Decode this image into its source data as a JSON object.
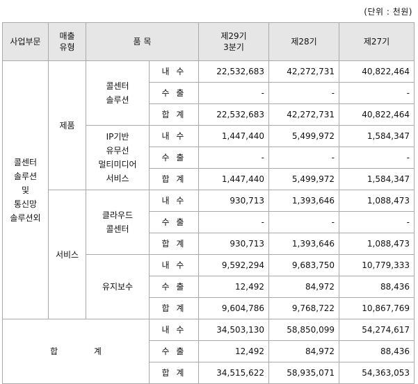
{
  "unit": "(단위 : 천원)",
  "headers": {
    "division": "사업부문",
    "sales_type": [
      "매출",
      "유형"
    ],
    "product": "품 목",
    "p29": [
      "제29기",
      "3분기"
    ],
    "p28": "제28기",
    "p27": "제27기"
  },
  "division_name": [
    "콜센터",
    "솔루션",
    "및",
    "통신망",
    "솔루션외"
  ],
  "type_product": "제품",
  "type_service": "서비스",
  "items": {
    "callcenter": [
      "콜센터",
      "솔루션"
    ],
    "ip": [
      "IP기반",
      "유무선",
      "멀티미디어",
      "서비스"
    ],
    "cloud": [
      "클라우드",
      "콜센터"
    ],
    "maint": "유지보수"
  },
  "labels": {
    "domestic": "내 수",
    "export": "수 출",
    "sum": "합 계"
  },
  "total_label": [
    "합",
    "계"
  ],
  "rows": {
    "cc_dom": [
      "22,532,683",
      "42,272,731",
      "40,822,464"
    ],
    "cc_exp": [
      "-",
      "-",
      "-"
    ],
    "cc_sum": [
      "22,532,683",
      "42,272,731",
      "40,822,464"
    ],
    "ip_dom": [
      "1,447,440",
      "5,499,972",
      "1,584,347"
    ],
    "ip_exp": [
      "-",
      "-",
      "-"
    ],
    "ip_sum": [
      "1,447,440",
      "5,499,972",
      "1,584,347"
    ],
    "cl_dom": [
      "930,713",
      "1,393,646",
      "1,088,473"
    ],
    "cl_exp": [
      "-",
      "-",
      "-"
    ],
    "cl_sum": [
      "930,713",
      "1,393,646",
      "1,088,473"
    ],
    "mt_dom": [
      "9,592,294",
      "9,683,750",
      "10,779,333"
    ],
    "mt_exp": [
      "12,492",
      "84,972",
      "88,436"
    ],
    "mt_sum": [
      "9,604,786",
      "9,768,722",
      "10,867,769"
    ],
    "tt_dom": [
      "34,503,130",
      "58,850,099",
      "54,274,617"
    ],
    "tt_exp": [
      "12,492",
      "84,972",
      "88,436"
    ],
    "tt_sum": [
      "34,515,622",
      "58,935,071",
      "54,363,053"
    ]
  }
}
